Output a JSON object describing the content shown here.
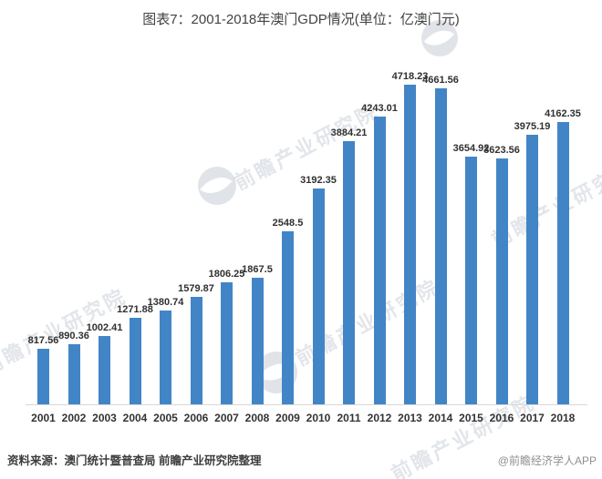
{
  "title": "图表7：2001-2018年澳门GDP情况(单位：亿澳门元)",
  "chart_data": {
    "type": "bar",
    "title": "图表7：2001-2018年澳门GDP情况(单位：亿澳门元)",
    "unit": "亿澳门元",
    "categories": [
      "2001",
      "2002",
      "2003",
      "2004",
      "2005",
      "2006",
      "2007",
      "2008",
      "2009",
      "2010",
      "2011",
      "2012",
      "2013",
      "2014",
      "2015",
      "2016",
      "2017",
      "2018"
    ],
    "values": [
      817.56,
      890.36,
      1002.41,
      1271.88,
      1380.74,
      1579.87,
      1806.25,
      1867.5,
      2548.5,
      3192.35,
      3884.21,
      4243.01,
      4718.23,
      4661.56,
      3654.92,
      3623.56,
      3975.19,
      4162.35
    ],
    "value_labels": [
      "817.56",
      "890.36",
      "1002.41",
      "1271.88",
      "1380.74",
      "1579.87",
      "1806.25",
      "1867.5",
      "2548.5",
      "3192.35",
      "3884.21",
      "4243.01",
      "4718.23",
      "4661.56",
      "3654.92",
      "3623.56",
      "3975.19",
      "4162.35"
    ],
    "xlabel": "",
    "ylabel": "",
    "ylim": [
      0,
      4800
    ],
    "grid": false,
    "legend_position": "none",
    "data_labels_visible": true,
    "bar_color": "#4285c6",
    "axis_line_color": "#d7d7d7"
  },
  "footer": {
    "source": "资料来源：澳门统计暨普查局 前瞻产业研究院整理",
    "credit": "@前瞻经济学人APP"
  },
  "watermark": {
    "text": "前瞻产业研究院"
  }
}
